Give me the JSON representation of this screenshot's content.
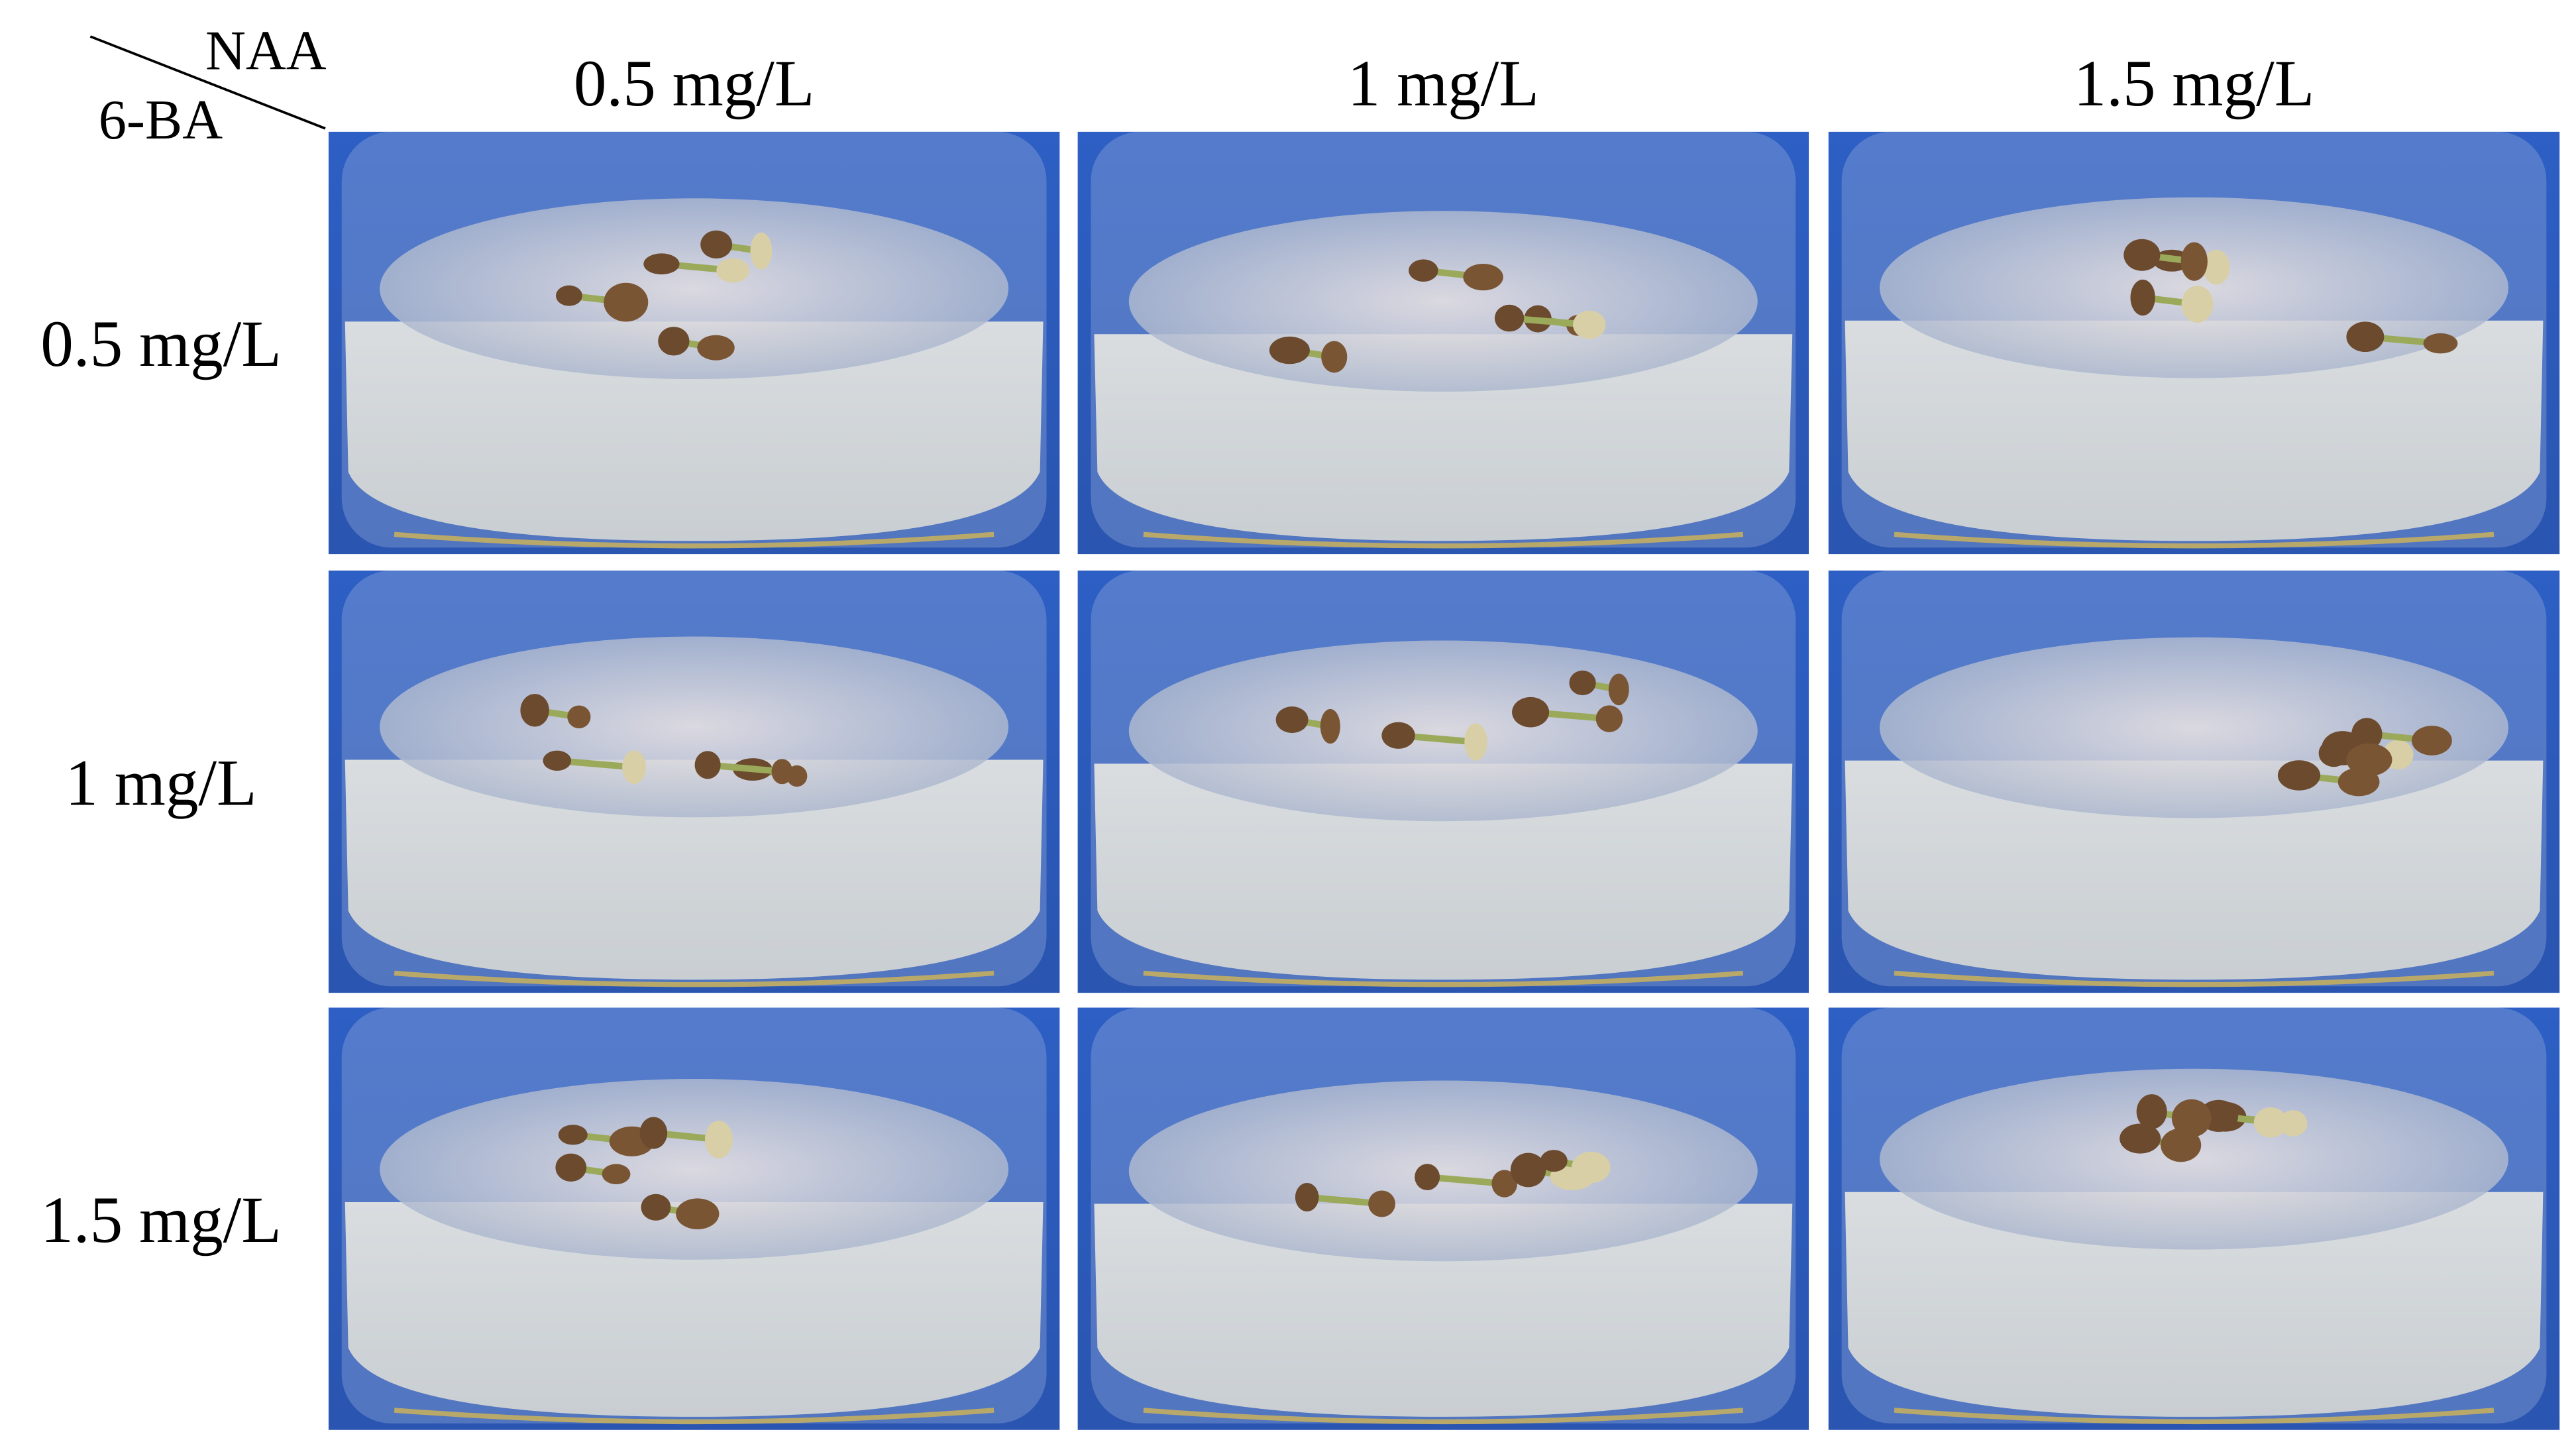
{
  "header": {
    "column_factor": "NAA",
    "row_factor": "6-BA"
  },
  "columns": [
    "0.5 mg/L",
    "1 mg/L",
    "1.5 mg/L"
  ],
  "rows": [
    "0.5 mg/L",
    "1 mg/L",
    "1.5 mg/L"
  ]
}
